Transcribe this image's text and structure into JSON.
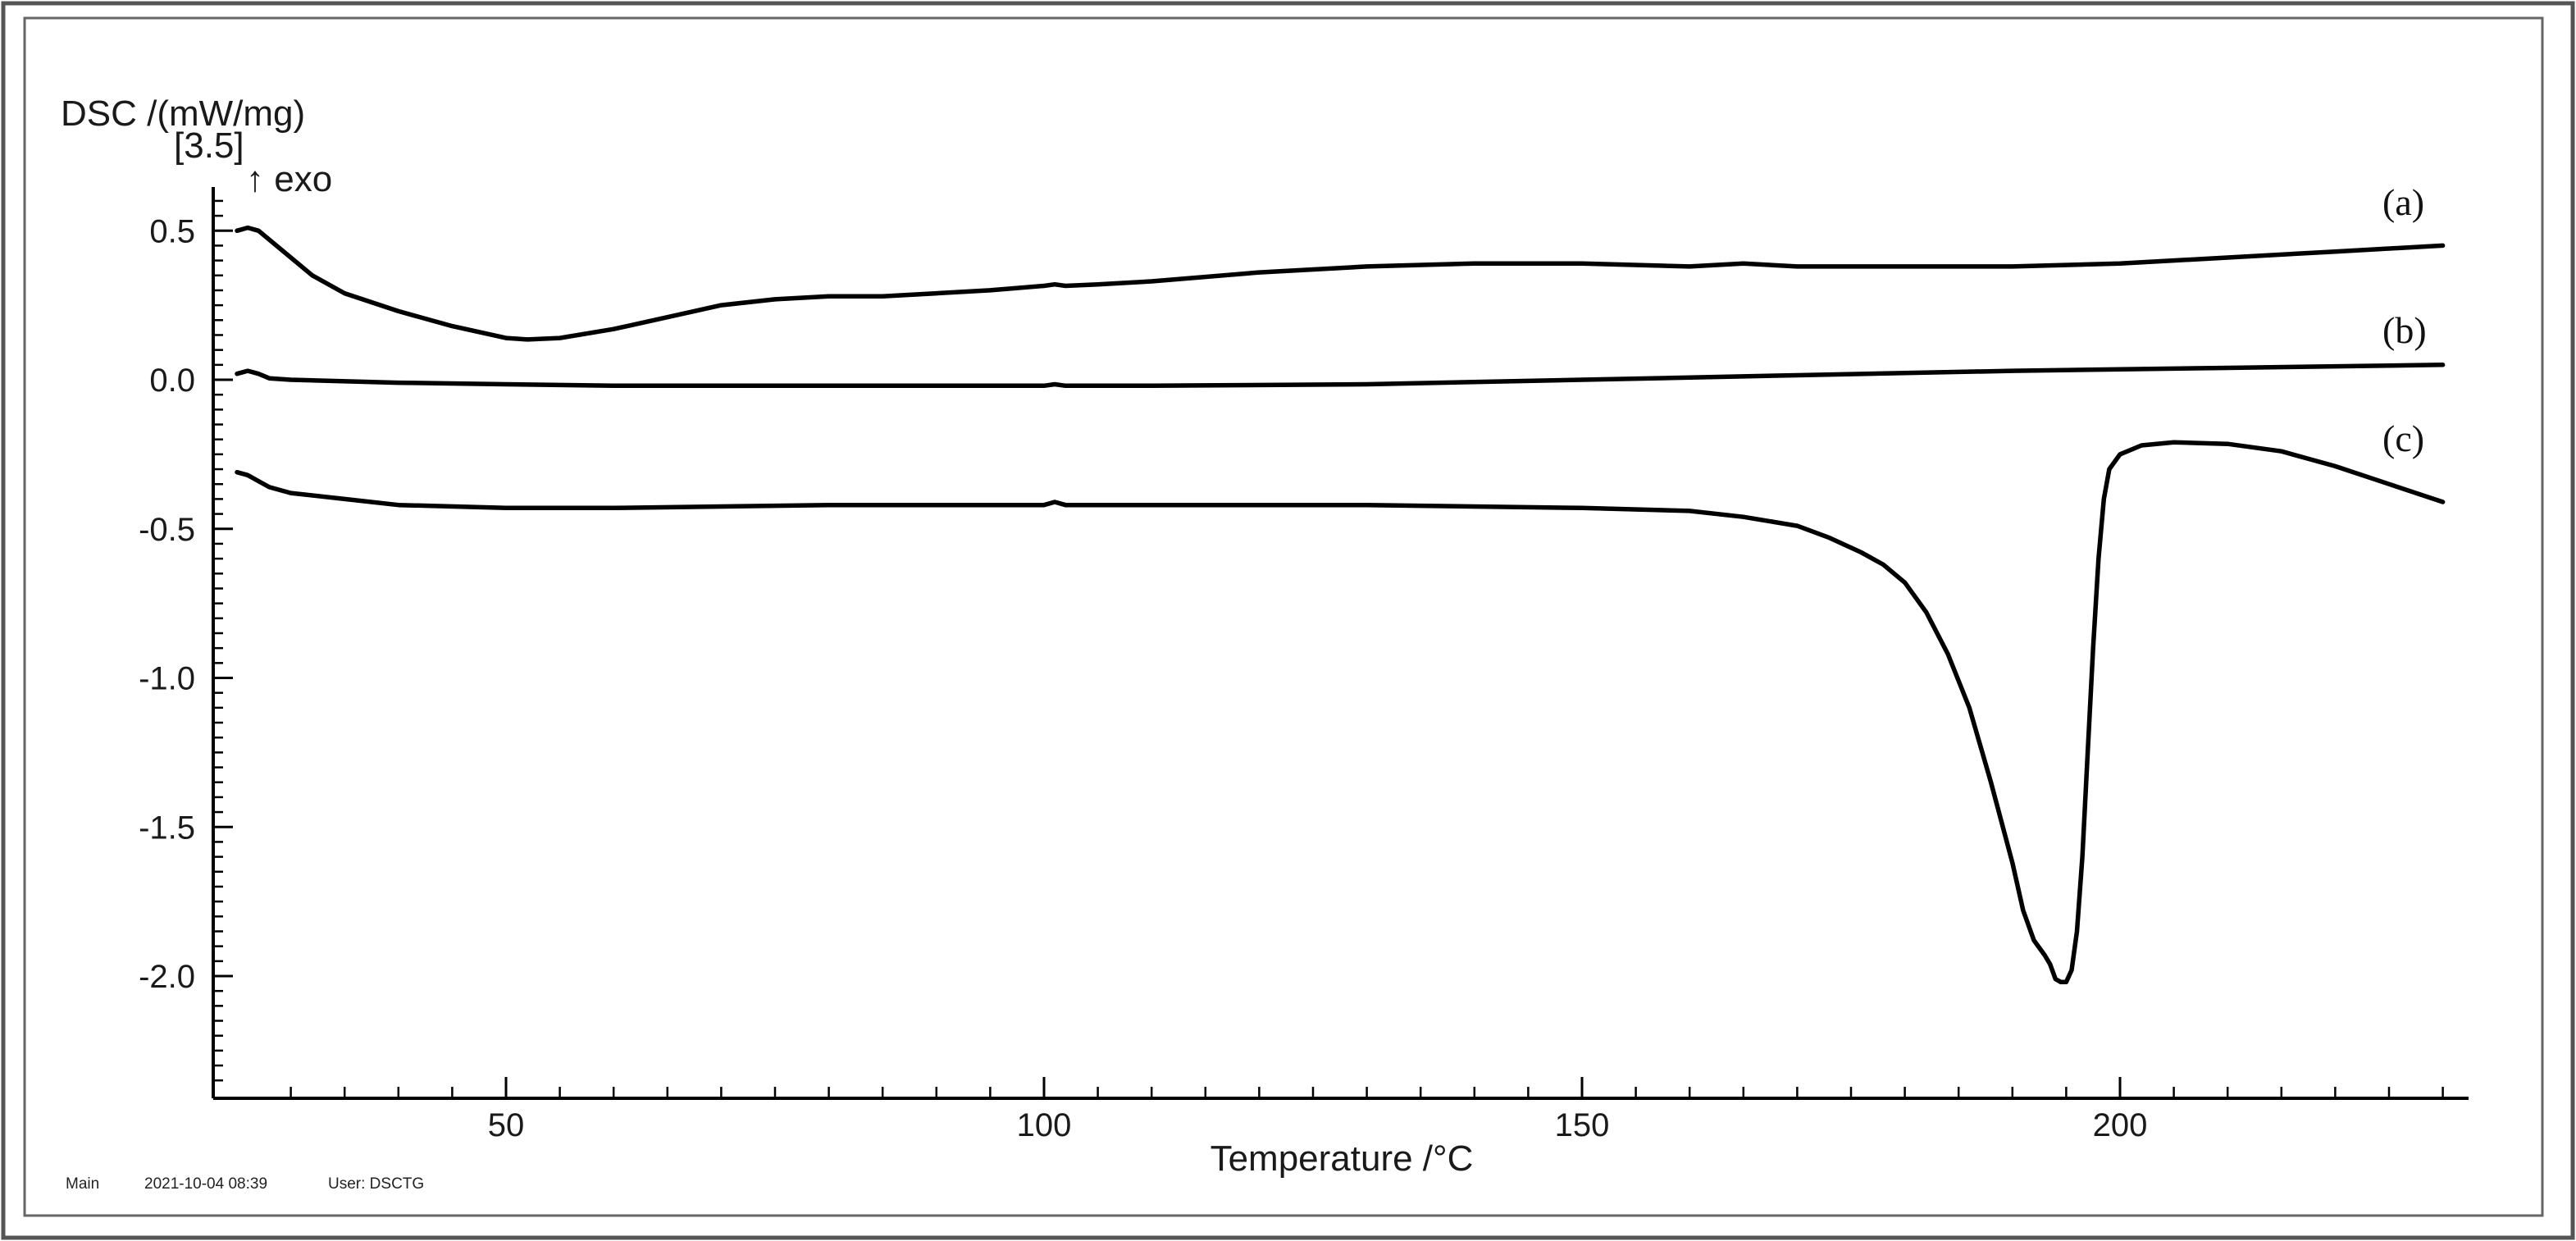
{
  "chart_data": {
    "type": "line",
    "title": "",
    "ylabel": "DSC /(mW/mg)",
    "ylabel_sub": "[3.5]",
    "exo_marker": "↑ exo",
    "xlabel": "Temperature /°C",
    "xlim": [
      25,
      230
    ],
    "ylim": [
      -2.4,
      0.7
    ],
    "xticks": [
      {
        "value": 50,
        "label": "50"
      },
      {
        "value": 100,
        "label": "100"
      },
      {
        "value": 150,
        "label": "150"
      },
      {
        "value": 200,
        "label": "200"
      }
    ],
    "yticks": [
      {
        "value": 0.5,
        "label": "0.5"
      },
      {
        "value": 0.0,
        "label": "0.0"
      },
      {
        "value": -0.5,
        "label": "-0.5"
      },
      {
        "value": -1.0,
        "label": "-1.0"
      },
      {
        "value": -1.5,
        "label": "-1.5"
      },
      {
        "value": -2.0,
        "label": "-2.0"
      }
    ],
    "grid": false,
    "legend": "none",
    "series": [
      {
        "name": "(a)",
        "x": [
          25,
          26,
          27,
          28,
          30,
          32,
          35,
          40,
          45,
          50,
          52,
          55,
          60,
          65,
          70,
          75,
          80,
          85,
          90,
          95,
          100,
          101,
          102,
          105,
          110,
          120,
          130,
          140,
          150,
          160,
          165,
          170,
          180,
          190,
          200,
          210,
          220,
          230
        ],
        "y": [
          0.5,
          0.51,
          0.5,
          0.47,
          0.41,
          0.35,
          0.29,
          0.23,
          0.18,
          0.14,
          0.135,
          0.14,
          0.17,
          0.21,
          0.25,
          0.27,
          0.28,
          0.28,
          0.29,
          0.3,
          0.315,
          0.32,
          0.315,
          0.32,
          0.33,
          0.36,
          0.38,
          0.39,
          0.39,
          0.38,
          0.39,
          0.38,
          0.38,
          0.38,
          0.39,
          0.41,
          0.43,
          0.45
        ]
      },
      {
        "name": "(b)",
        "x": [
          25,
          26,
          27,
          28,
          30,
          40,
          50,
          60,
          80,
          100,
          101,
          102,
          110,
          130,
          150,
          170,
          190,
          210,
          230
        ],
        "y": [
          0.02,
          0.03,
          0.02,
          0.005,
          0.0,
          -0.01,
          -0.015,
          -0.02,
          -0.02,
          -0.02,
          -0.015,
          -0.02,
          -0.02,
          -0.015,
          0.0,
          0.015,
          0.03,
          0.04,
          0.05
        ]
      },
      {
        "name": "(c)",
        "x": [
          25,
          26,
          27,
          28,
          30,
          35,
          40,
          50,
          60,
          80,
          100,
          101,
          102,
          110,
          130,
          150,
          160,
          165,
          170,
          173,
          176,
          178,
          180,
          182,
          184,
          186,
          188,
          190,
          191,
          192,
          193,
          193.5,
          194,
          194.5,
          195,
          195.5,
          196,
          196.5,
          197,
          197.5,
          198,
          198.5,
          199,
          200,
          202,
          205,
          210,
          215,
          220,
          225,
          230
        ],
        "y": [
          -0.31,
          -0.32,
          -0.34,
          -0.36,
          -0.38,
          -0.4,
          -0.42,
          -0.43,
          -0.43,
          -0.42,
          -0.42,
          -0.41,
          -0.42,
          -0.42,
          -0.42,
          -0.43,
          -0.44,
          -0.46,
          -0.49,
          -0.53,
          -0.58,
          -0.62,
          -0.68,
          -0.78,
          -0.92,
          -1.1,
          -1.35,
          -1.62,
          -1.78,
          -1.88,
          -1.93,
          -1.96,
          -2.01,
          -2.02,
          -2.02,
          -1.98,
          -1.85,
          -1.6,
          -1.25,
          -0.9,
          -0.6,
          -0.4,
          -0.3,
          -0.25,
          -0.22,
          -0.21,
          -0.215,
          -0.24,
          -0.29,
          -0.35,
          -0.41
        ]
      }
    ]
  },
  "footer": {
    "view": "Main",
    "timestamp": "2021-10-04 08:39",
    "user": "User: DSCTG"
  }
}
